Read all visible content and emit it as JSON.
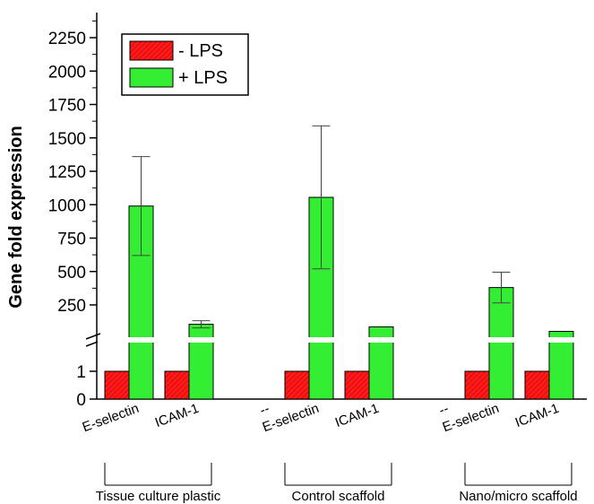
{
  "chart_data": {
    "type": "bar",
    "ylabel": "Gene fold expression",
    "y_axis": {
      "broken": true,
      "lower_ticks": [
        "0",
        "1"
      ],
      "upper_ticks": [
        "250",
        "500",
        "750",
        "1000",
        "1250",
        "1500",
        "1750",
        "2000",
        "2250"
      ]
    },
    "legend": {
      "placement": "top-left",
      "entries": [
        {
          "label": "- LPS",
          "color": "#ff1a1a",
          "pattern": "hatched"
        },
        {
          "label": "+ LPS",
          "color": "#33ee33",
          "pattern": "solid"
        }
      ]
    },
    "groups": [
      {
        "label": "Tissue culture plastic",
        "categories": [
          {
            "label": "E-selectin",
            "minus_lps": 1,
            "plus_lps": 990,
            "plus_lps_error": 370
          },
          {
            "label": "ICAM-1",
            "minus_lps": 1,
            "plus_lps": 100,
            "plus_lps_error": 28
          }
        ]
      },
      {
        "label": "Control scaffold",
        "categories": [
          {
            "label": "E-selectin",
            "minus_lps": 1,
            "plus_lps": 1055,
            "plus_lps_error": 535
          },
          {
            "label": "ICAM-1",
            "minus_lps": 1,
            "plus_lps": 80,
            "plus_lps_error": 0
          }
        ]
      },
      {
        "label": "Nano/micro scaffold",
        "categories": [
          {
            "label": "E-selectin",
            "minus_lps": 1,
            "plus_lps": 380,
            "plus_lps_error": 115
          },
          {
            "label": "ICAM-1",
            "minus_lps": 1,
            "plus_lps": 45,
            "plus_lps_error": 0
          }
        ]
      }
    ],
    "separator_marks": [
      "--",
      "--"
    ]
  }
}
